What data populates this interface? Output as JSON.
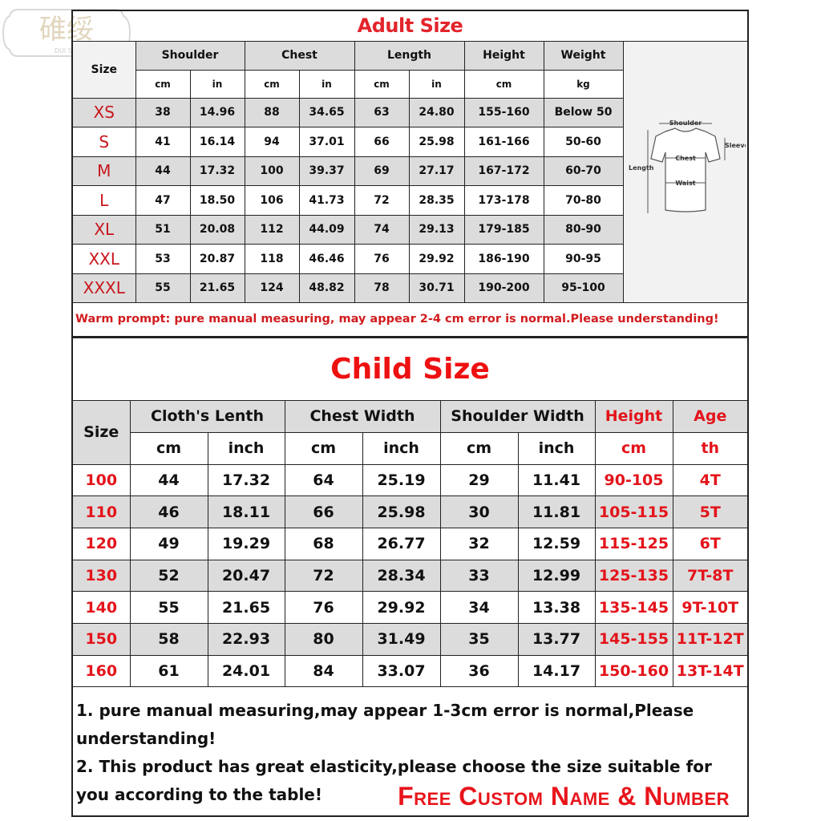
{
  "logo": {
    "text": "碓绥",
    "sub": "DUI SUI"
  },
  "adult": {
    "title": "Adult Size",
    "size_label": "Size",
    "groups": [
      "Shoulder",
      "Chest",
      "Length",
      "Height",
      "Weight"
    ],
    "units": [
      "cm",
      "in",
      "cm",
      "in",
      "cm",
      "in",
      "cm",
      "kg"
    ],
    "rows": [
      [
        "XS",
        "38",
        "14.96",
        "88",
        "34.65",
        "63",
        "24.80",
        "155-160",
        "Below 50"
      ],
      [
        "S",
        "41",
        "16.14",
        "94",
        "37.01",
        "66",
        "25.98",
        "161-166",
        "50-60"
      ],
      [
        "M",
        "44",
        "17.32",
        "100",
        "39.37",
        "69",
        "27.17",
        "167-172",
        "60-70"
      ],
      [
        "L",
        "47",
        "18.50",
        "106",
        "41.73",
        "72",
        "28.35",
        "173-178",
        "70-80"
      ],
      [
        "XL",
        "51",
        "20.08",
        "112",
        "44.09",
        "74",
        "29.13",
        "179-185",
        "80-90"
      ],
      [
        "XXL",
        "53",
        "20.87",
        "118",
        "46.46",
        "76",
        "29.92",
        "186-190",
        "90-95"
      ],
      [
        "XXXL",
        "55",
        "21.65",
        "124",
        "48.82",
        "78",
        "30.71",
        "190-200",
        "95-100"
      ]
    ],
    "diagram": {
      "shoulder": "Shoulder",
      "sleeves": "Sleeves",
      "chest": "Chest",
      "length": "Length",
      "waist": "Waist"
    },
    "prompt": "Warm prompt: pure manual measuring, may appear 2-4 cm error is normal.Please understanding!"
  },
  "child": {
    "title": "Child Size",
    "size_label": "Size",
    "groups": [
      "Cloth's Lenth",
      "Chest Width",
      "Shoulder Width",
      "Height",
      "Age"
    ],
    "units": [
      "cm",
      "inch",
      "cm",
      "inch",
      "cm",
      "inch",
      "cm",
      "th"
    ],
    "rows": [
      [
        "100",
        "44",
        "17.32",
        "64",
        "25.19",
        "29",
        "11.41",
        "90-105",
        "4T"
      ],
      [
        "110",
        "46",
        "18.11",
        "66",
        "25.98",
        "30",
        "11.81",
        "105-115",
        "5T"
      ],
      [
        "120",
        "49",
        "19.29",
        "68",
        "26.77",
        "32",
        "12.59",
        "115-125",
        "6T"
      ],
      [
        "130",
        "52",
        "20.47",
        "72",
        "28.34",
        "33",
        "12.99",
        "125-135",
        "7T-8T"
      ],
      [
        "140",
        "55",
        "21.65",
        "76",
        "29.92",
        "34",
        "13.38",
        "135-145",
        "9T-10T"
      ],
      [
        "150",
        "58",
        "22.93",
        "80",
        "31.49",
        "35",
        "13.77",
        "145-155",
        "11T-12T"
      ],
      [
        "160",
        "61",
        "24.01",
        "84",
        "33.07",
        "36",
        "14.17",
        "150-160",
        "13T-14T"
      ]
    ],
    "note1": "1. pure manual measuring,may appear 1-3cm error is normal,Please understanding!",
    "note2": "2. This product has great elasticity,please choose the size suitable for you according to the table!",
    "custom": "Free Custom Name & Number"
  },
  "colors": {
    "red": "#e3141b",
    "gray": "#dcdcdc"
  }
}
